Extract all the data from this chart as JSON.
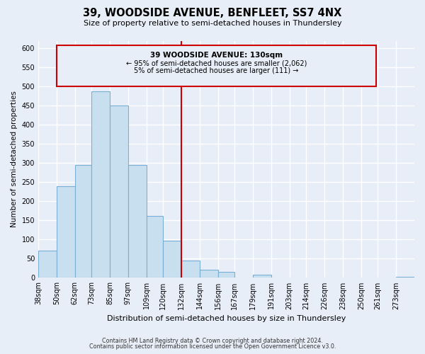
{
  "title": "39, WOODSIDE AVENUE, BENFLEET, SS7 4NX",
  "subtitle": "Size of property relative to semi-detached houses in Thundersley",
  "xlabel": "Distribution of semi-detached houses by size in Thundersley",
  "ylabel": "Number of semi-detached properties",
  "bar_edges": [
    38,
    50,
    62,
    73,
    85,
    97,
    109,
    120,
    132,
    144,
    156,
    167,
    179,
    191,
    203,
    214,
    226,
    238,
    250,
    261,
    273
  ],
  "bar_heights": [
    72,
    240,
    295,
    487,
    450,
    295,
    162,
    97,
    46,
    22,
    15,
    0,
    9,
    0,
    0,
    0,
    0,
    0,
    0,
    0,
    3
  ],
  "bar_color": "#c8dff0",
  "bar_edge_color": "#7aafd4",
  "vline_x": 132,
  "vline_color": "#cc0000",
  "ylim": [
    0,
    620
  ],
  "yticks": [
    0,
    50,
    100,
    150,
    200,
    250,
    300,
    350,
    400,
    450,
    500,
    550,
    600
  ],
  "xtick_labels": [
    "38sqm",
    "50sqm",
    "62sqm",
    "73sqm",
    "85sqm",
    "97sqm",
    "109sqm",
    "120sqm",
    "132sqm",
    "144sqm",
    "156sqm",
    "167sqm",
    "179sqm",
    "191sqm",
    "203sqm",
    "214sqm",
    "226sqm",
    "238sqm",
    "250sqm",
    "261sqm",
    "273sqm"
  ],
  "annotation_title": "39 WOODSIDE AVENUE: 130sqm",
  "annotation_line1": "← 95% of semi-detached houses are smaller (2,062)",
  "annotation_line2": "5% of semi-detached houses are larger (111) →",
  "footnote1": "Contains HM Land Registry data © Crown copyright and database right 2024.",
  "footnote2": "Contains public sector information licensed under the Open Government Licence v3.0.",
  "background_color": "#e8eef8",
  "plot_bg_color": "#e8eef8",
  "grid_color": "#ffffff",
  "box_fill_color": "#e8eef8",
  "box_edge_color": "#cc0000"
}
